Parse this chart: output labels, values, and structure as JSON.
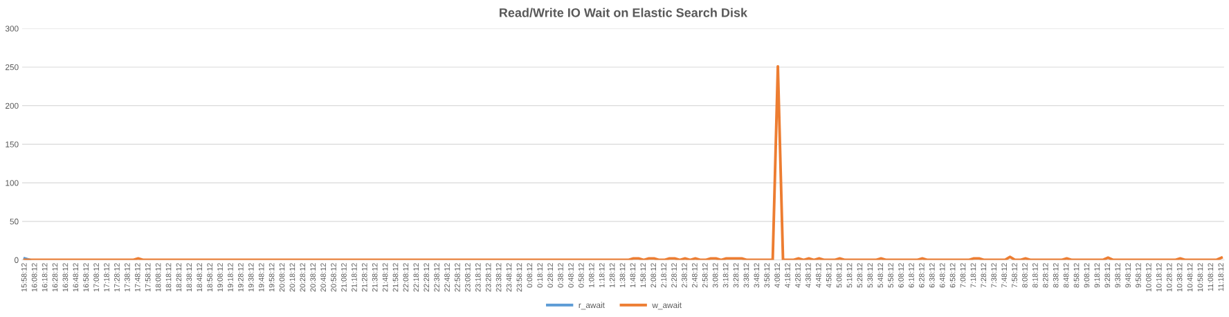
{
  "chart_data": {
    "type": "line",
    "title": "Read/Write IO Wait on Elastic Search Disk",
    "categories": [
      "15:58:12",
      null,
      "16:08:12",
      null,
      "16:18:12",
      null,
      "16:28:12",
      null,
      "16:38:12",
      null,
      "16:48:12",
      null,
      "16:58:12",
      null,
      "17:08:12",
      null,
      "17:18:12",
      null,
      "17:28:12",
      null,
      "17:38:12",
      null,
      "17:48:12",
      null,
      "17:58:12",
      null,
      "18:08:12",
      null,
      "18:18:12",
      null,
      "18:28:12",
      null,
      "18:38:12",
      null,
      "18:48:12",
      null,
      "18:58:12",
      null,
      "19:08:12",
      null,
      "19:18:12",
      null,
      "19:28:12",
      null,
      "19:38:12",
      null,
      "19:48:12",
      null,
      "19:58:12",
      null,
      "20:08:12",
      null,
      "20:18:12",
      null,
      "20:28:12",
      null,
      "20:38:12",
      null,
      "20:48:12",
      null,
      "20:58:12",
      null,
      "21:08:12",
      null,
      "21:18:12",
      null,
      "21:28:12",
      null,
      "21:38:12",
      null,
      "21:48:12",
      null,
      "21:58:12",
      null,
      "22:08:12",
      null,
      "22:18:12",
      null,
      "22:28:12",
      null,
      "22:38:12",
      null,
      "22:48:12",
      null,
      "22:58:12",
      null,
      "23:08:12",
      null,
      "23:18:12",
      null,
      "23:28:12",
      null,
      "23:38:12",
      null,
      "23:48:12",
      null,
      "23:58:12",
      null,
      "0:08:12",
      null,
      "0:18:12",
      null,
      "0:28:12",
      null,
      "0:38:12",
      null,
      "0:48:12",
      null,
      "0:58:12",
      null,
      "1:08:12",
      null,
      "1:18:12",
      null,
      "1:28:12",
      null,
      "1:38:12",
      null,
      "1:48:12",
      null,
      "1:58:12",
      null,
      "2:08:12",
      null,
      "2:18:12",
      null,
      "2:28:12",
      null,
      "2:38:12",
      null,
      "2:48:12",
      null,
      "2:58:12",
      null,
      "3:08:12",
      null,
      "3:18:12",
      null,
      "3:28:12",
      null,
      "3:38:12",
      null,
      "3:48:12",
      null,
      "3:58:12",
      null,
      "4:08:12",
      null,
      "4:18:12",
      null,
      "4:28:12",
      null,
      "4:38:12",
      null,
      "4:48:12",
      null,
      "4:58:12",
      null,
      "5:08:12",
      null,
      "5:18:12",
      null,
      "5:28:12",
      null,
      "5:38:12",
      null,
      "5:48:12",
      null,
      "5:58:12",
      null,
      "6:08:12",
      null,
      "6:18:12",
      null,
      "6:28:12",
      null,
      "6:38:12",
      null,
      "6:48:12",
      null,
      "6:58:12",
      null,
      "7:08:12",
      null,
      "7:18:12",
      null,
      "7:28:12",
      null,
      "7:38:12",
      null,
      "7:48:12",
      null,
      "7:58:12",
      null,
      "8:08:12",
      null,
      "8:18:12",
      null,
      "8:28:12",
      null,
      "8:38:12",
      null,
      "8:48:12",
      null,
      "8:58:12",
      null,
      "9:08:12",
      null,
      "9:18:12",
      null,
      "9:28:12",
      null,
      "9:38:12",
      null,
      "9:48:12",
      null,
      "9:58:12",
      null,
      "10:08:12",
      null,
      "10:18:12",
      null,
      "10:28:12",
      null,
      "10:38:12",
      null,
      "10:48:12",
      null,
      "10:58:12",
      null,
      "11:08:12",
      null,
      "11:18:12"
    ],
    "series": [
      {
        "name": "r_await",
        "color": "#5b9bd5",
        "values": [
          2,
          0,
          null,
          null,
          null,
          null,
          null,
          null,
          null,
          null,
          null,
          null,
          null,
          null,
          null,
          null,
          null,
          null,
          null,
          null,
          null,
          null,
          null,
          null,
          null,
          null,
          null,
          null,
          null,
          null,
          null,
          null,
          null,
          null,
          null,
          null,
          null,
          null,
          null,
          null,
          null,
          null,
          null,
          null,
          null,
          null,
          null,
          null,
          null,
          null,
          null,
          null,
          null,
          null,
          null,
          null,
          null,
          null,
          null,
          null,
          null,
          null,
          null,
          null,
          null,
          null,
          null,
          null,
          null,
          null,
          null,
          null,
          null,
          null,
          null,
          null,
          null,
          null,
          null,
          null,
          null,
          null,
          null,
          null,
          null,
          null,
          null,
          null,
          null,
          null,
          null,
          null,
          null,
          null,
          null,
          null,
          null,
          null,
          null,
          null,
          null,
          null,
          null,
          null,
          null,
          null,
          null,
          null,
          null,
          null,
          null,
          null,
          null,
          null,
          null,
          null,
          null,
          null,
          null,
          null,
          null,
          null,
          null,
          null,
          null,
          null,
          null,
          null,
          null,
          null,
          null,
          null,
          null,
          null,
          null,
          null,
          null,
          null,
          null,
          null,
          null,
          null,
          null,
          null,
          null,
          null,
          null,
          null,
          null,
          null,
          null,
          null,
          null,
          null,
          null,
          null,
          null,
          null,
          null,
          null,
          null,
          null,
          null,
          null,
          null,
          null,
          null,
          null,
          null,
          null,
          null,
          null,
          null,
          null,
          null,
          null,
          null,
          null,
          null,
          null,
          null,
          null,
          null,
          null,
          null,
          null,
          null,
          null,
          null,
          null,
          null,
          null,
          null,
          null,
          null,
          null,
          null,
          null,
          null,
          null,
          null,
          null,
          null,
          null,
          null,
          null,
          null,
          null,
          null,
          null,
          null,
          null,
          null,
          null,
          null,
          null,
          null,
          null,
          null,
          null,
          null,
          null,
          null,
          null,
          null,
          null,
          null,
          null,
          null,
          null,
          null,
          null,
          null
        ]
      },
      {
        "name": "w_await",
        "color": "#ed7d31",
        "values": [
          0,
          0,
          0,
          0,
          0,
          0,
          0,
          0,
          0,
          0,
          0,
          0,
          0,
          0,
          0,
          0,
          0,
          0,
          0,
          0,
          0,
          0,
          2,
          0,
          0,
          0,
          0,
          0,
          0,
          0,
          0,
          0,
          0,
          0,
          0,
          0,
          0,
          0,
          0,
          0,
          0,
          0,
          0,
          0,
          0,
          0,
          0,
          0,
          0,
          0,
          0,
          0,
          0,
          0,
          0,
          0,
          0,
          0,
          0,
          0,
          0,
          0,
          0,
          0,
          0,
          0,
          0,
          0,
          0,
          0,
          0,
          0,
          0,
          0,
          0,
          0,
          0,
          0,
          0,
          0,
          0,
          0,
          0,
          0,
          0,
          0,
          0,
          0,
          0,
          0,
          0,
          0,
          0,
          0,
          0,
          0,
          0,
          0,
          0,
          0,
          0,
          0,
          0,
          0,
          0,
          0,
          0,
          0,
          0,
          0,
          0,
          0,
          0,
          0,
          0,
          0,
          0,
          0,
          2,
          2,
          0,
          2,
          2,
          0,
          0,
          2,
          2,
          0,
          2,
          0,
          2,
          0,
          0,
          2,
          2,
          0,
          2,
          2,
          2,
          2,
          0,
          0,
          0,
          0,
          0,
          0,
          251,
          0,
          0,
          0,
          2,
          0,
          2,
          0,
          2,
          0,
          0,
          0,
          2,
          0,
          0,
          0,
          0,
          0,
          0,
          0,
          2,
          0,
          0,
          0,
          0,
          0,
          0,
          0,
          2,
          0,
          0,
          0,
          0,
          0,
          0,
          0,
          0,
          0,
          2,
          2,
          0,
          0,
          0,
          0,
          0,
          4,
          0,
          0,
          2,
          0,
          0,
          0,
          0,
          0,
          0,
          0,
          2,
          0,
          0,
          0,
          0,
          0,
          0,
          0,
          3,
          0,
          0,
          0,
          0,
          0,
          0,
          0,
          0,
          0,
          0,
          0,
          0,
          0,
          2,
          0,
          0,
          0,
          0,
          0,
          0,
          0,
          3
        ]
      }
    ],
    "ylim": [
      0,
      300
    ],
    "yticks": [
      0,
      50,
      100,
      150,
      200,
      250,
      300
    ],
    "grid": "y",
    "legend": "bottom",
    "marker": "none",
    "line_style": "solid"
  }
}
